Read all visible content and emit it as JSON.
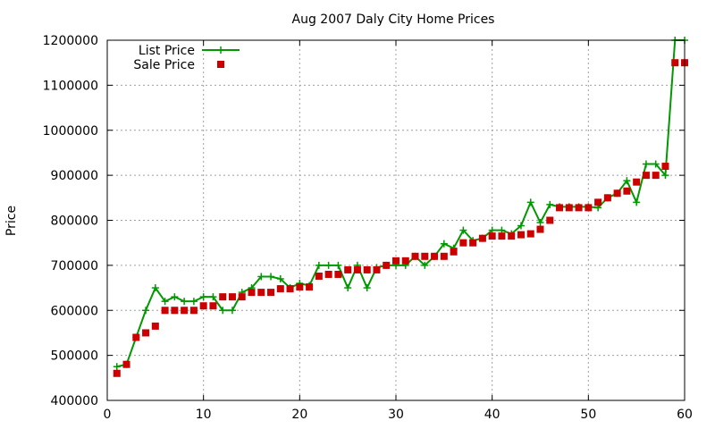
{
  "chart_data": {
    "type": "line",
    "title": "Aug 2007 Daly City Home Prices",
    "xlabel": "",
    "ylabel": "Price",
    "xlim": [
      0,
      60
    ],
    "ylim": [
      400000,
      1200000
    ],
    "xticks": [
      0,
      10,
      20,
      30,
      40,
      50,
      60
    ],
    "yticks": [
      400000,
      500000,
      600000,
      700000,
      800000,
      900000,
      1000000,
      1100000,
      1200000
    ],
    "grid": true,
    "legend_position": "top-left",
    "x": [
      1,
      2,
      3,
      4,
      5,
      6,
      7,
      8,
      9,
      10,
      11,
      12,
      13,
      14,
      15,
      16,
      17,
      18,
      19,
      20,
      21,
      22,
      23,
      24,
      25,
      26,
      27,
      28,
      29,
      30,
      31,
      32,
      33,
      34,
      35,
      36,
      37,
      38,
      39,
      40,
      41,
      42,
      43,
      44,
      45,
      46,
      47,
      48,
      49,
      50,
      51,
      52,
      53,
      54,
      55,
      56,
      57,
      58,
      59,
      60
    ],
    "series": [
      {
        "name": "List Price",
        "style": "lines+crosses",
        "color": "#009900",
        "values": [
          475000,
          480000,
          540000,
          600000,
          650000,
          620000,
          630000,
          620000,
          620000,
          630000,
          630000,
          600000,
          600000,
          640000,
          650000,
          675000,
          675000,
          670000,
          650000,
          660000,
          655000,
          700000,
          700000,
          700000,
          650000,
          700000,
          650000,
          695000,
          700000,
          700000,
          700000,
          720000,
          700000,
          720000,
          748000,
          738000,
          778000,
          755000,
          760000,
          778000,
          778000,
          770000,
          788000,
          840000,
          795000,
          835000,
          830000,
          830000,
          830000,
          830000,
          828000,
          850000,
          860000,
          888000,
          840000,
          925000,
          925000,
          900000,
          1200000,
          1200000
        ]
      },
      {
        "name": "Sale Price",
        "style": "squares",
        "color": "#cc0000",
        "values": [
          460000,
          480000,
          540000,
          550000,
          565000,
          600000,
          600000,
          600000,
          600000,
          610000,
          610000,
          630000,
          630000,
          630000,
          640000,
          640000,
          640000,
          648000,
          648000,
          652000,
          652000,
          676000,
          680000,
          680000,
          690000,
          690000,
          690000,
          690000,
          700000,
          710000,
          710000,
          720000,
          720000,
          720000,
          720000,
          730000,
          750000,
          750000,
          760000,
          765000,
          765000,
          765000,
          768000,
          770000,
          780000,
          800000,
          828000,
          828000,
          828000,
          828000,
          840000,
          850000,
          860000,
          865000,
          885000,
          900000,
          900000,
          920000,
          1150000,
          1150000
        ]
      }
    ]
  }
}
